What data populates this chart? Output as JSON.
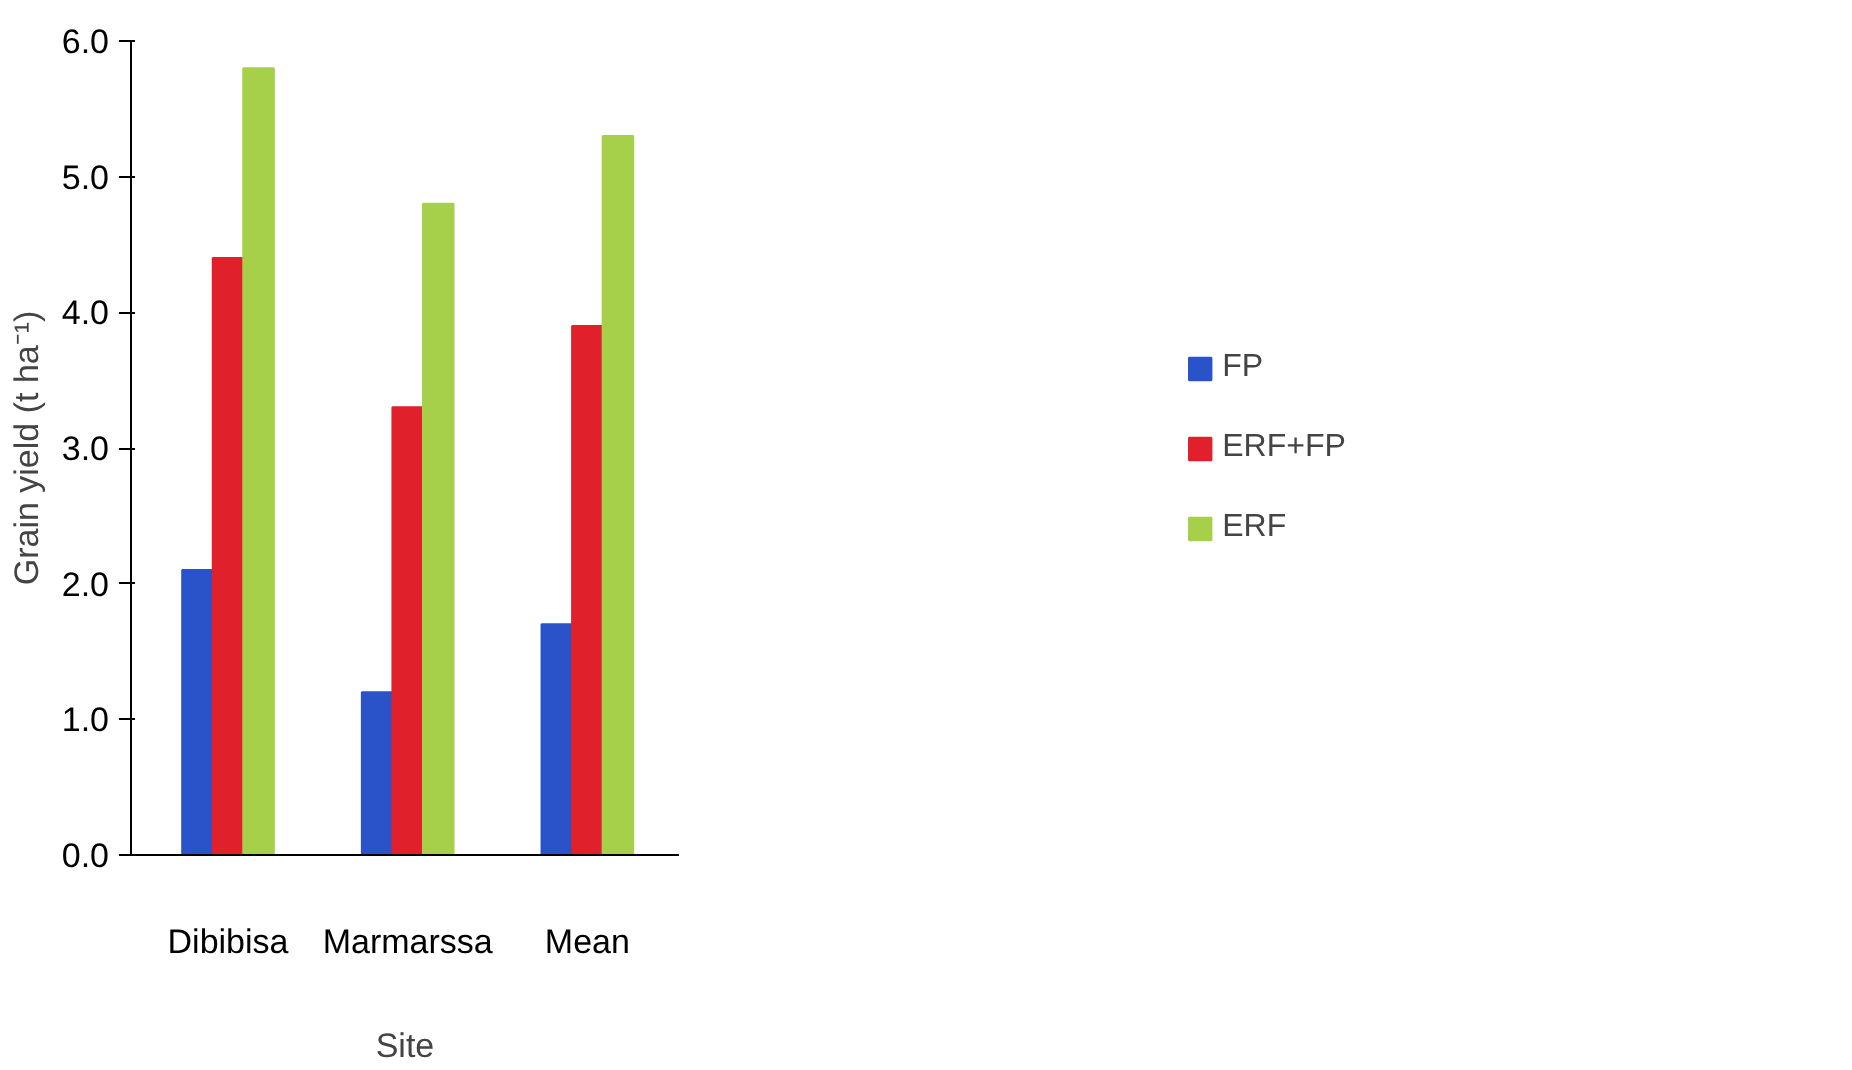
{
  "chart_data": {
    "type": "bar",
    "xlabel": "Site",
    "ylabel": "Grain yield (t ha⁻¹)",
    "categories": [
      "Dibibisa",
      "Marmarssa",
      "Mean"
    ],
    "series": [
      {
        "name": "FP",
        "color": "#2a52c9",
        "values": [
          2.1,
          1.2,
          1.7
        ]
      },
      {
        "name": "ERF+FP",
        "color": "#e0202a",
        "values": [
          4.4,
          3.3,
          3.9
        ]
      },
      {
        "name": "ERF",
        "color": "#a6d04a",
        "values": [
          5.8,
          4.8,
          5.3
        ]
      }
    ],
    "ylim": [
      0,
      6
    ],
    "yticks": [
      {
        "value": 0,
        "label": "0.0"
      },
      {
        "value": 1,
        "label": "1.0"
      },
      {
        "value": 2,
        "label": "2.0"
      },
      {
        "value": 3,
        "label": "3.0"
      },
      {
        "value": 4,
        "label": "4.0"
      },
      {
        "value": 5,
        "label": "5.0"
      },
      {
        "value": 6,
        "label": "6.0"
      }
    ],
    "grid": false,
    "legend": "right"
  }
}
